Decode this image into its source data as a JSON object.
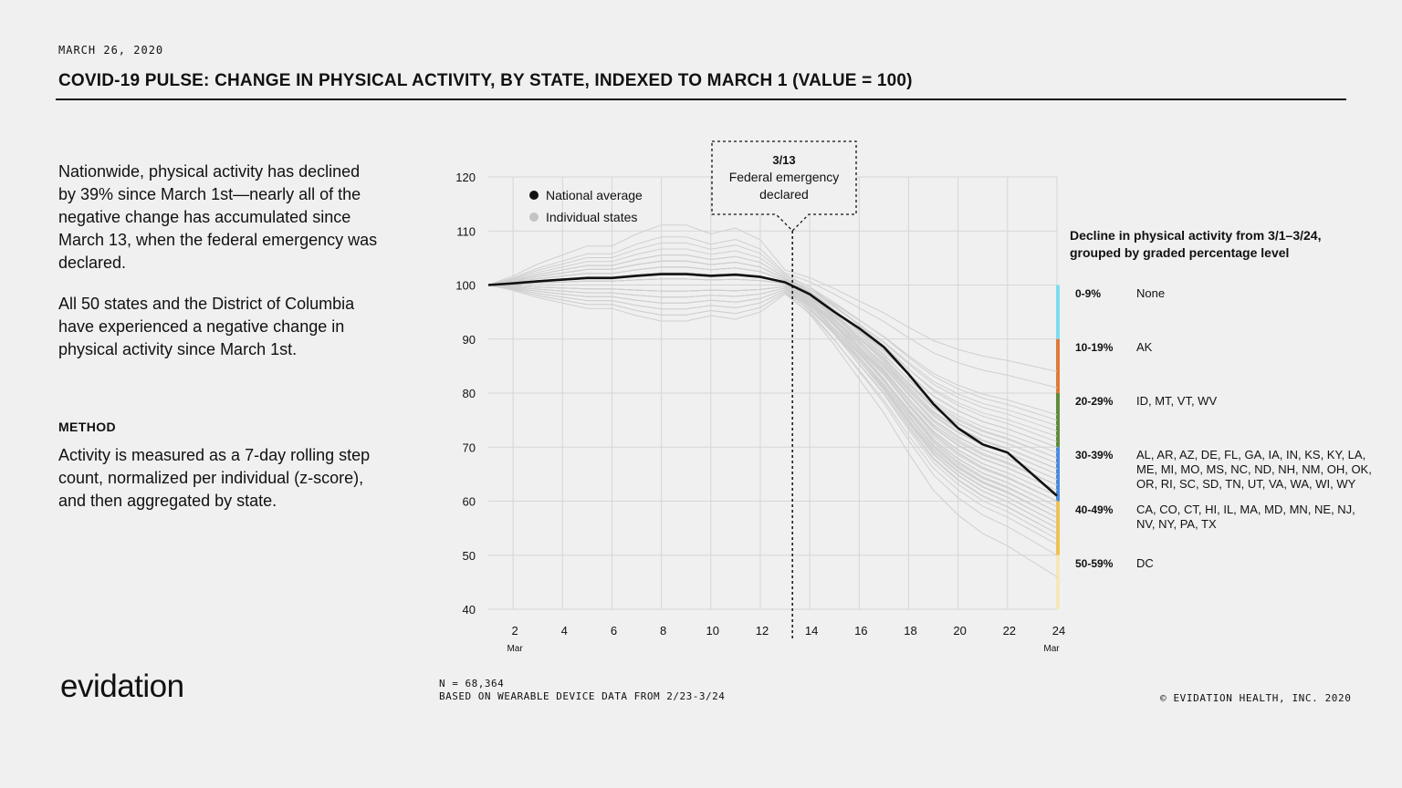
{
  "header": {
    "date": "MARCH 26, 2020",
    "title": "COVID-19 PULSE: CHANGE IN PHYSICAL ACTIVITY, BY STATE, INDEXED TO MARCH 1 (VALUE = 100)"
  },
  "narrative": {
    "p1": "Nationwide, physical activity has declined by 39% since March 1st—nearly all of the negative change has accumulated since March 13, when the federal emergency was declared.",
    "p2": "All 50 states and the District of Columbia have experienced a negative change in physical activity since March 1st.",
    "method_label": "METHOD",
    "p3": "Activity is measured as a 7-day rolling step count, normalized per individual (z-score), and then aggregated by state."
  },
  "brand": {
    "logo_text": "evidation"
  },
  "footer": {
    "n": "N = 68,364",
    "source": "BASED ON WEARABLE DEVICE DATA FROM 2/23-3/24",
    "copyright": "© EVIDATION HEALTH, INC. 2020"
  },
  "colors": {
    "national": "#111111",
    "states": "#cfcfcf",
    "grid": "#d6d6d6",
    "g0": "#7fdcf2",
    "g1": "#e07a3a",
    "g2": "#5f8c3c",
    "g3": "#4a8ae0",
    "g4": "#efc251",
    "g5": "#f5e8b8"
  },
  "chart_data": {
    "type": "line",
    "x_ticks": [
      2,
      4,
      6,
      8,
      10,
      12,
      14,
      16,
      18,
      20,
      22,
      24
    ],
    "x_month_labels": [
      "Mar",
      "Mar"
    ],
    "y_ticks": [
      40,
      50,
      60,
      70,
      80,
      90,
      100,
      110,
      120
    ],
    "xlim": [
      1,
      24.3
    ],
    "ylim": [
      40,
      120
    ],
    "legend": {
      "national": "National average",
      "states": "Individual states",
      "position": "top-left"
    },
    "annotation": {
      "date": "3/13",
      "text_line1": "Federal emergency",
      "text_line2": "declared",
      "x": 13.3
    },
    "national": {
      "x": [
        1,
        2,
        3,
        4,
        5,
        6,
        7,
        8,
        9,
        10,
        11,
        12,
        13,
        14,
        15,
        16,
        17,
        18,
        19,
        20,
        21,
        22,
        23,
        24
      ],
      "y": [
        100,
        100.3,
        100.7,
        101,
        101.3,
        101.3,
        101.7,
        102,
        102,
        101.7,
        101.9,
        101.5,
        100.5,
        98.3,
        95,
        92,
        88.5,
        83.5,
        78,
        73.5,
        70.5,
        69,
        65,
        61
      ]
    },
    "states_shape": [
      0,
      0.015,
      0.03,
      0.045,
      0.06,
      0.07,
      0.08,
      0.09,
      0.095,
      0.1,
      0.1,
      0.09,
      0.08,
      0.15,
      0.25,
      0.36,
      0.47,
      0.6,
      0.72,
      0.8,
      0.86,
      0.9,
      0.95,
      1
    ],
    "states_end_values": [
      84,
      81,
      76,
      75,
      74,
      73,
      72,
      71,
      70,
      70,
      69,
      68,
      68,
      67,
      67,
      66,
      66,
      65,
      65,
      64,
      64,
      63,
      63,
      62,
      62,
      61,
      61,
      60,
      60,
      59,
      59,
      58,
      58,
      57,
      57,
      56,
      56,
      55,
      55,
      54,
      54,
      53,
      58,
      66,
      70,
      63,
      57,
      60,
      52,
      50,
      46
    ],
    "states_peak_values": [
      110,
      108,
      104,
      106,
      103,
      105,
      102,
      107,
      104,
      103,
      101,
      105,
      100,
      104,
      102,
      103,
      99,
      101,
      104,
      100,
      102,
      105,
      98,
      103,
      100,
      101,
      99,
      104,
      102,
      100,
      98,
      103,
      101,
      99,
      102,
      97,
      100,
      101,
      99,
      97,
      100,
      98,
      96,
      102,
      104,
      99,
      95,
      97,
      94,
      96,
      95
    ],
    "bands": [
      {
        "range": "0-9%",
        "states": "None",
        "y_top": 100,
        "y_bottom": 90
      },
      {
        "range": "10-19%",
        "states": "AK",
        "y_top": 90,
        "y_bottom": 80
      },
      {
        "range": "20-29%",
        "states": "ID, MT, VT, WV",
        "y_top": 80,
        "y_bottom": 70
      },
      {
        "range": "30-39%",
        "states": "AL, AR, AZ, DE, FL, GA, IA, IN, KS, KY, LA, ME, MI, MO, MS, NC, ND, NH, NM, OH, OK, OR, RI, SC, SD, TN, UT, VA, WA, WI, WY",
        "y_top": 70,
        "y_bottom": 60
      },
      {
        "range": "40-49%",
        "states": "CA, CO, CT, HI, IL, MA, MD, MN, NE, NJ, NV, NY, PA, TX",
        "y_top": 60,
        "y_bottom": 50
      },
      {
        "range": "50-59%",
        "states": "DC",
        "y_top": 50,
        "y_bottom": 40
      }
    ],
    "band_title": "Decline in physical activity from 3/1–3/24, grouped by graded percentage level"
  }
}
